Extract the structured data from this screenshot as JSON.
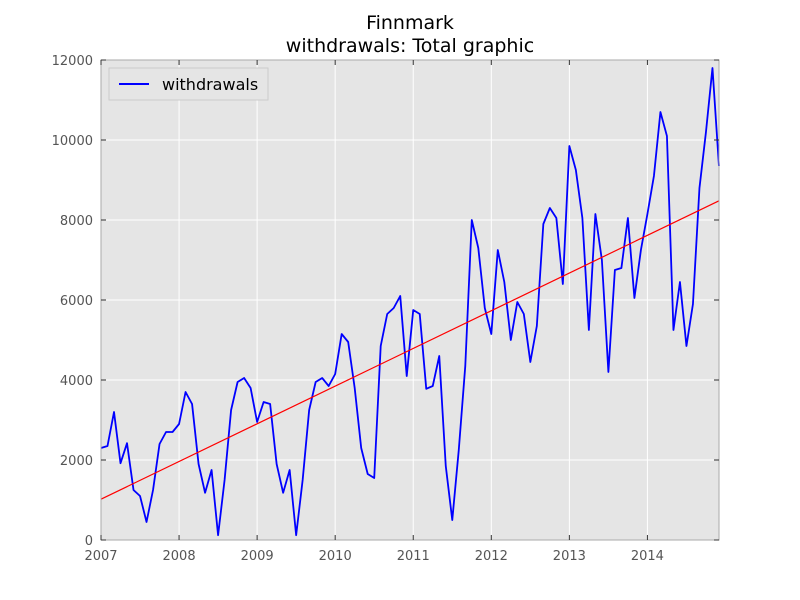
{
  "chart_data": {
    "type": "line",
    "title": "Finnmark",
    "subtitle": "withdrawals: Total graphic",
    "xlabel": "",
    "ylabel": "",
    "xlim": [
      2007.0,
      2014.917
    ],
    "ylim": [
      0,
      12000
    ],
    "x_ticks": [
      2007,
      2008,
      2009,
      2010,
      2011,
      2012,
      2013,
      2014
    ],
    "y_ticks": [
      0,
      2000,
      4000,
      6000,
      8000,
      10000,
      12000
    ],
    "grid": true,
    "legend_position": "top-left",
    "colors": {
      "background": "#e5e5e5",
      "grid": "#ffffff",
      "series": "#0000ff",
      "trend": "#ff0000"
    },
    "series": [
      {
        "name": "withdrawals",
        "x": [
          "2007-01",
          "2007-02",
          "2007-03",
          "2007-04",
          "2007-05",
          "2007-06",
          "2007-07",
          "2007-08",
          "2007-09",
          "2007-10",
          "2007-11",
          "2007-12",
          "2008-01",
          "2008-02",
          "2008-03",
          "2008-04",
          "2008-05",
          "2008-06",
          "2008-07",
          "2008-08",
          "2008-09",
          "2008-10",
          "2008-11",
          "2008-12",
          "2009-01",
          "2009-02",
          "2009-03",
          "2009-04",
          "2009-05",
          "2009-06",
          "2009-07",
          "2009-08",
          "2009-09",
          "2009-10",
          "2009-11",
          "2009-12",
          "2010-01",
          "2010-02",
          "2010-03",
          "2010-04",
          "2010-05",
          "2010-06",
          "2010-07",
          "2010-08",
          "2010-09",
          "2010-10",
          "2010-11",
          "2010-12",
          "2011-01",
          "2011-02",
          "2011-03",
          "2011-04",
          "2011-05",
          "2011-06",
          "2011-07",
          "2011-08",
          "2011-09",
          "2011-10",
          "2011-11",
          "2011-12",
          "2012-01",
          "2012-02",
          "2012-03",
          "2012-04",
          "2012-05",
          "2012-06",
          "2012-07",
          "2012-08",
          "2012-09",
          "2012-10",
          "2012-11",
          "2012-12",
          "2013-01",
          "2013-02",
          "2013-03",
          "2013-04",
          "2013-05",
          "2013-06",
          "2013-07",
          "2013-08",
          "2013-09",
          "2013-10",
          "2013-11",
          "2013-12",
          "2014-01",
          "2014-02",
          "2014-03",
          "2014-04",
          "2014-05",
          "2014-06",
          "2014-07",
          "2014-08",
          "2014-09",
          "2014-10",
          "2014-11",
          "2014-12"
        ],
        "values": [
          2300,
          2350,
          3200,
          1920,
          2420,
          1250,
          1100,
          450,
          1250,
          2400,
          2700,
          2700,
          2900,
          3700,
          3400,
          1900,
          1180,
          1750,
          120,
          1500,
          3250,
          3950,
          4050,
          3800,
          2950,
          3450,
          3400,
          1900,
          1180,
          1750,
          120,
          1500,
          3250,
          3950,
          4050,
          3850,
          4150,
          5150,
          4950,
          3800,
          2300,
          1650,
          1550,
          4850,
          5650,
          5800,
          6100,
          4100,
          5750,
          5650,
          3780,
          3850,
          4600,
          1850,
          500,
          2250,
          4350,
          8000,
          7300,
          5800,
          5150,
          7250,
          6450,
          5000,
          5950,
          5650,
          4450,
          5350,
          7900,
          8300,
          8050,
          6400,
          9850,
          9250,
          8050,
          5250,
          8150,
          7000,
          4200,
          6750,
          6800,
          8050,
          6050,
          7250,
          8150,
          9100,
          10700,
          10100,
          5250,
          6450,
          4850,
          5900,
          8800,
          10200,
          11800,
          9350
        ]
      },
      {
        "name": "",
        "style": "trend",
        "x": [
          "2007-01",
          "2014-12"
        ],
        "values": [
          1020,
          8480
        ]
      }
    ]
  }
}
